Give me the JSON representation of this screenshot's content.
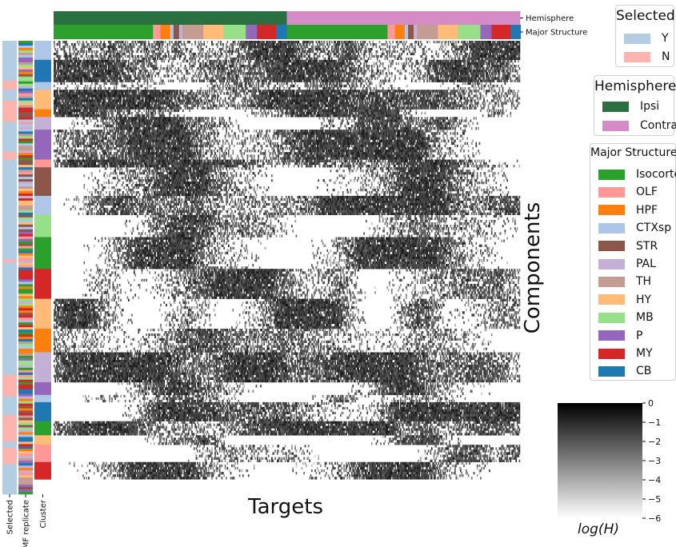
{
  "chart_data": {
    "type": "heatmap",
    "xlabel": "Targets",
    "ylabel": "Components",
    "colorbar": {
      "label": "log(H)",
      "ticks": [
        "0",
        "−1",
        "−2",
        "−3",
        "−4",
        "−5",
        "−6"
      ],
      "range": [
        -6,
        0
      ],
      "colormap": "white-to-black"
    },
    "column_tracks": [
      {
        "label": "Hemisphere",
        "segments": [
          {
            "name": "Ipsi",
            "fraction": 0.5
          },
          {
            "name": "Contra",
            "fraction": 0.5
          }
        ]
      },
      {
        "label": "Major Structure",
        "segments": [
          {
            "name": "Isocortex",
            "fraction": 0.213
          },
          {
            "name": "OLF",
            "fraction": 0.016
          },
          {
            "name": "HPF",
            "fraction": 0.021
          },
          {
            "name": "CTXsp",
            "fraction": 0.007
          },
          {
            "name": "STR",
            "fraction": 0.012
          },
          {
            "name": "PAL",
            "fraction": 0.007
          },
          {
            "name": "TH",
            "fraction": 0.045
          },
          {
            "name": "HY",
            "fraction": 0.043
          },
          {
            "name": "MB",
            "fraction": 0.048
          },
          {
            "name": "P",
            "fraction": 0.024
          },
          {
            "name": "MY",
            "fraction": 0.041
          },
          {
            "name": "CB",
            "fraction": 0.023
          },
          {
            "name": "Isocortex",
            "fraction": 0.216
          },
          {
            "name": "OLF",
            "fraction": 0.016
          },
          {
            "name": "HPF",
            "fraction": 0.021
          },
          {
            "name": "CTXsp",
            "fraction": 0.007
          },
          {
            "name": "STR",
            "fraction": 0.012
          },
          {
            "name": "PAL",
            "fraction": 0.007
          },
          {
            "name": "TH",
            "fraction": 0.045
          },
          {
            "name": "HY",
            "fraction": 0.043
          },
          {
            "name": "MB",
            "fraction": 0.048
          },
          {
            "name": "P",
            "fraction": 0.024
          },
          {
            "name": "MY",
            "fraction": 0.041
          },
          {
            "name": "CB",
            "fraction": 0.021
          }
        ]
      }
    ],
    "row_tracks": [
      {
        "label": "Selected",
        "segments": [
          {
            "name": "Y",
            "fraction": 0.088
          },
          {
            "name": "N",
            "fraction": 0.02
          },
          {
            "name": "Y",
            "fraction": 0.024
          },
          {
            "name": "N",
            "fraction": 0.047
          },
          {
            "name": "Y",
            "fraction": 0.066
          },
          {
            "name": "N",
            "fraction": 0.017
          },
          {
            "name": "Y",
            "fraction": 0.22
          },
          {
            "name": "N",
            "fraction": 0.007
          },
          {
            "name": "Y",
            "fraction": 0.248
          },
          {
            "name": "N",
            "fraction": 0.047
          },
          {
            "name": "Y",
            "fraction": 0.042
          },
          {
            "name": "N",
            "fraction": 0.058
          },
          {
            "name": "Y",
            "fraction": 0.014
          },
          {
            "name": "N",
            "fraction": 0.036
          },
          {
            "name": "Y",
            "fraction": 0.066
          }
        ]
      },
      {
        "label": "NMF replicate",
        "categorical": true
      },
      {
        "label": "Cluster",
        "segments": [
          {
            "name": "CTXsp",
            "fraction": 0.042
          },
          {
            "name": "CB",
            "fraction": 0.049
          },
          {
            "name": "CTXsp",
            "fraction": 0.017
          },
          {
            "name": "HY",
            "fraction": 0.043
          },
          {
            "name": "HPF",
            "fraction": 0.017
          },
          {
            "name": "PAL",
            "fraction": 0.028
          },
          {
            "name": "P",
            "fraction": 0.066
          },
          {
            "name": "OLF",
            "fraction": 0.017
          },
          {
            "name": "STR",
            "fraction": 0.063
          },
          {
            "name": "CTXsp",
            "fraction": 0.042
          },
          {
            "name": "MB",
            "fraction": 0.049
          },
          {
            "name": "Isocortex",
            "fraction": 0.07
          },
          {
            "name": "MY",
            "fraction": 0.066
          },
          {
            "name": "HY",
            "fraction": 0.066
          },
          {
            "name": "HPF",
            "fraction": 0.052
          },
          {
            "name": "PAL",
            "fraction": 0.066
          },
          {
            "name": "P",
            "fraction": 0.028
          },
          {
            "name": "CTXsp",
            "fraction": 0.016
          },
          {
            "name": "CB",
            "fraction": 0.042
          },
          {
            "name": "Isocortex",
            "fraction": 0.031
          },
          {
            "name": "HY",
            "fraction": 0.021
          },
          {
            "name": "OLF",
            "fraction": 0.038
          },
          {
            "name": "MY",
            "fraction": 0.038
          }
        ]
      }
    ],
    "colors": {
      "Y": "#b3cde3",
      "N": "#fbb4ae",
      "Ipsi": "#2a7040",
      "Contra": "#d48bc6",
      "Isocortex": "#2ca02c",
      "OLF": "#ff9896",
      "HPF": "#ff7f0e",
      "CTXsp": "#aec7e8",
      "STR": "#8c564b",
      "PAL": "#c5b0d5",
      "TH": "#c49c94",
      "HY": "#ffbb78",
      "MB": "#98df8a",
      "P": "#9467bd",
      "MY": "#d62728",
      "CB": "#1f77b4"
    },
    "legends": [
      {
        "title": "Selected",
        "entries": [
          "Y",
          "N"
        ]
      },
      {
        "title": "Hemisphere",
        "entries": [
          "Ipsi",
          "Contra"
        ]
      },
      {
        "title": "Major Structure",
        "entries": [
          "Isocortex",
          "OLF",
          "HPF",
          "CTXsp",
          "STR",
          "PAL",
          "TH",
          "HY",
          "MB",
          "P",
          "MY",
          "CB"
        ]
      }
    ]
  }
}
